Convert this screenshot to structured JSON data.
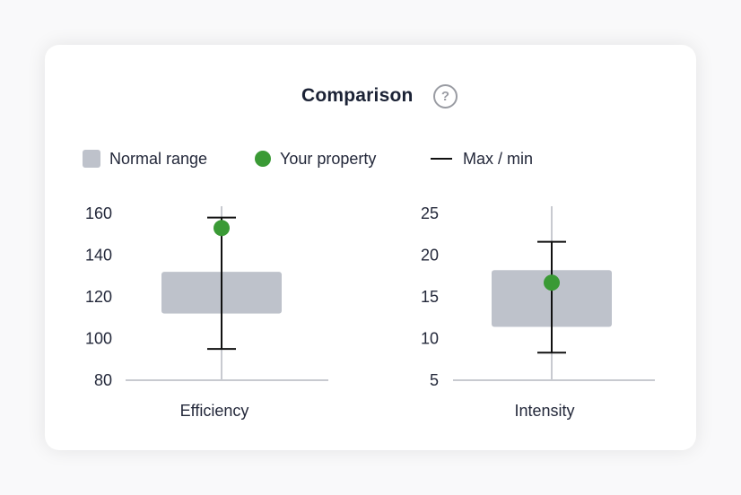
{
  "header": {
    "title": "Comparison",
    "help_icon": "question-circle-icon",
    "help_glyph": "?"
  },
  "legend": {
    "normal_range": "Normal range",
    "your_property": "Your property",
    "max_min": "Max / min"
  },
  "colors": {
    "range": "#bec2cb",
    "property": "#3a9a35",
    "whisker": "#111111",
    "axis": "#c8cad0",
    "card": "#ffffff"
  },
  "chart_data": [
    {
      "type": "box",
      "category": "Efficiency",
      "yticks": [
        "160",
        "140",
        "120",
        "100",
        "80"
      ],
      "ylim": [
        80,
        160
      ],
      "range_low": 112,
      "range_high": 132,
      "min": 95,
      "max": 158,
      "value": 153
    },
    {
      "type": "box",
      "category": "Intensity",
      "yticks": [
        "25",
        "20",
        "15",
        "10",
        "5"
      ],
      "ylim": [
        5,
        25
      ],
      "range_low": 11.4,
      "range_high": 18.2,
      "min": 8.3,
      "max": 21.6,
      "value": 16.7
    }
  ]
}
